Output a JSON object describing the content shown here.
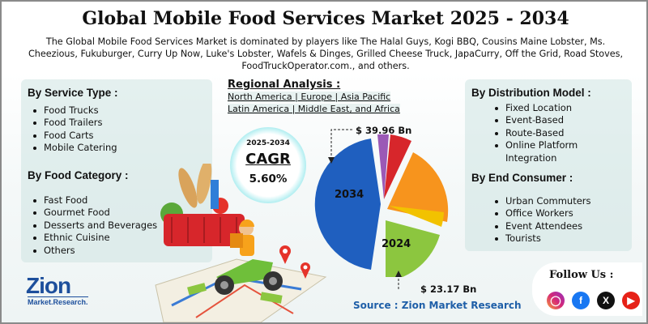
{
  "header": {
    "title": "Global Mobile Food Services Market 2025 - 2034",
    "intro": "The Global Mobile Food Services Market is dominated by players like The Halal Guys, Kogi BBQ, Cousins Maine Lobster, Ms. Cheezious, Fukuburger, Curry Up Now, Luke's Lobster, Wafels & Dinges, Grilled Cheese Truck, JapaCurry, Off the Grid, Road Stoves, FoodTruckOperator.com., and others."
  },
  "service_type": {
    "heading": "By Service Type :",
    "items": [
      "Food Trucks",
      "Food Trailers",
      "Food Carts",
      "Mobile Catering"
    ]
  },
  "food_category": {
    "heading": "By Food Category :",
    "items": [
      "Fast Food",
      "Gourmet Food",
      "Desserts and Beverages",
      "Ethnic Cuisine",
      "Others"
    ]
  },
  "regional": {
    "heading": "Regional Analysis :",
    "line1": "North America | Europe | Asia Pacific",
    "line2": "Latin America | Middle East, and Africa"
  },
  "cagr": {
    "years": "2025-2034",
    "label": "CAGR",
    "value": "5.60%"
  },
  "market_size": {
    "value_2034": "$ 39.96 Bn",
    "value_2024": "$ 23.17 Bn",
    "year_2034": "2034",
    "year_2024": "2024"
  },
  "distribution_model": {
    "heading": "By Distribution Model :",
    "items": [
      "Fixed Location",
      "Event-Based",
      "Route-Based",
      "Online Platform Integration"
    ]
  },
  "end_consumer": {
    "heading": "By End Consumer :",
    "items": [
      "Urban Commuters",
      "Office Workers",
      "Event Attendees",
      "Tourists"
    ]
  },
  "source": "Source : Zion Market Research",
  "follow": {
    "label": "Follow Us :",
    "icons": [
      "instagram-icon",
      "facebook-icon",
      "x-icon",
      "youtube-icon"
    ]
  },
  "logo": {
    "brand": "Zion",
    "sub": "Market.Research."
  },
  "colors": {
    "pie_2034": "#1f5fbf",
    "pie_2024": "#8cc63f",
    "pie_orange": "#f7941d",
    "pie_red": "#d7262b",
    "pie_purple": "#9b59b6",
    "pie_yellow": "#f2c200",
    "accent_blue": "#1f5fa8",
    "cagr_glow": "#5fd6dd"
  }
}
